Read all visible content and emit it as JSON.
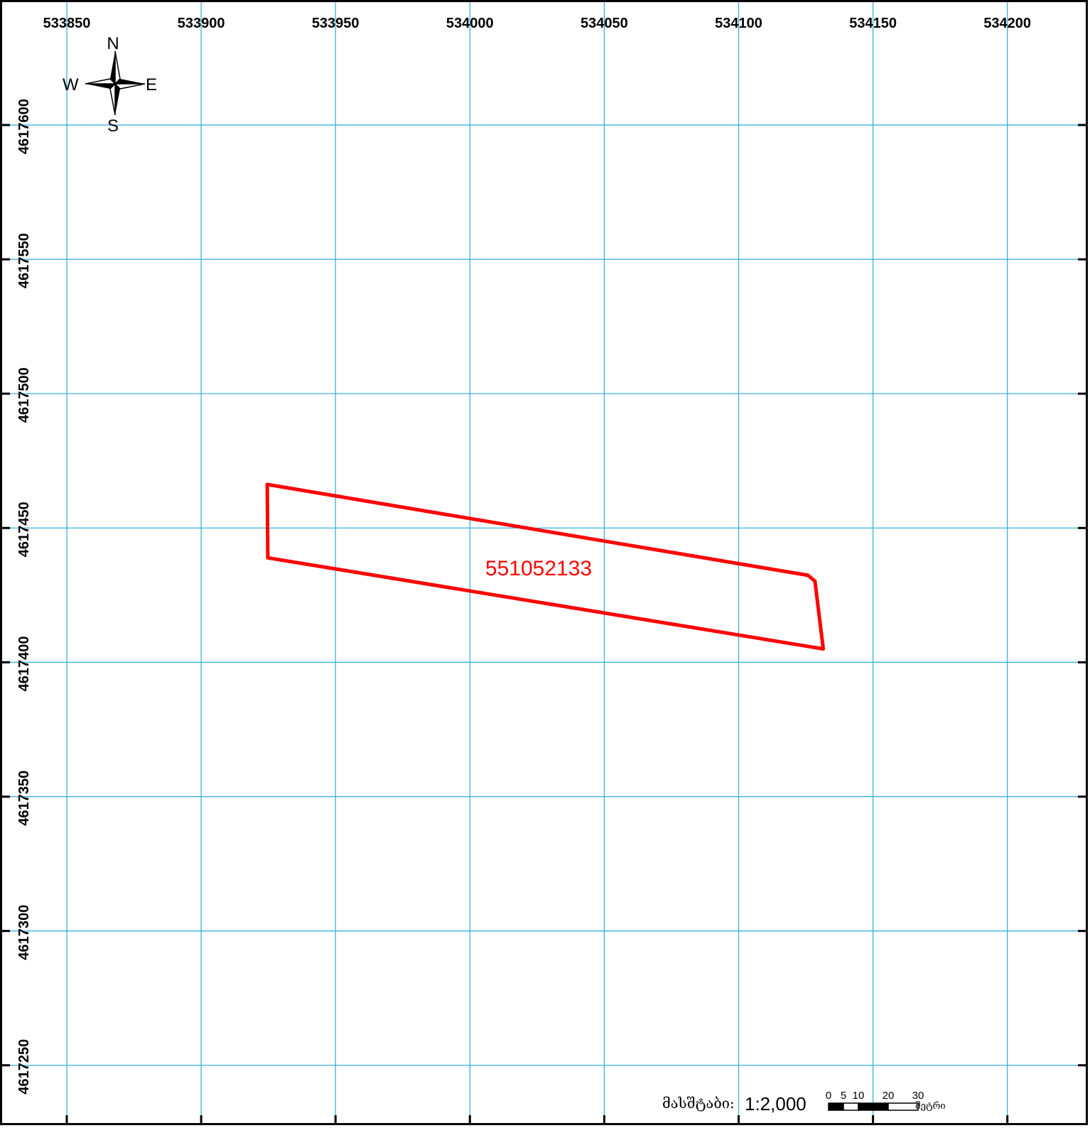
{
  "map": {
    "x_ticks": [
      "533850",
      "533900",
      "533950",
      "534000",
      "534050",
      "534100",
      "534150",
      "534200"
    ],
    "y_ticks": [
      "4617600",
      "4617550",
      "4617500",
      "4617450",
      "4617400",
      "4617350",
      "4617300",
      "4617250"
    ],
    "parcel": {
      "id": "551052133",
      "coordinates": [
        [
          533924.6,
          4617466.2
        ],
        [
          533924.8,
          4617438.9
        ],
        [
          534131.5,
          4617405.0
        ],
        [
          534128.4,
          4617430.2
        ],
        [
          534125.8,
          4617432.4
        ],
        [
          533924.6,
          4617466.2
        ]
      ]
    },
    "compass": {
      "n": "N",
      "s": "S",
      "e": "E",
      "w": "W"
    },
    "scale": {
      "title": "მასშტაბი:",
      "ratio": "1:2,000",
      "ticks": [
        "0",
        "5",
        "10",
        "20",
        "30"
      ],
      "unit": "მეტრი"
    },
    "colors": {
      "grid": "#29abe2",
      "parcel": "#ff0000",
      "frame": "#000000"
    }
  }
}
